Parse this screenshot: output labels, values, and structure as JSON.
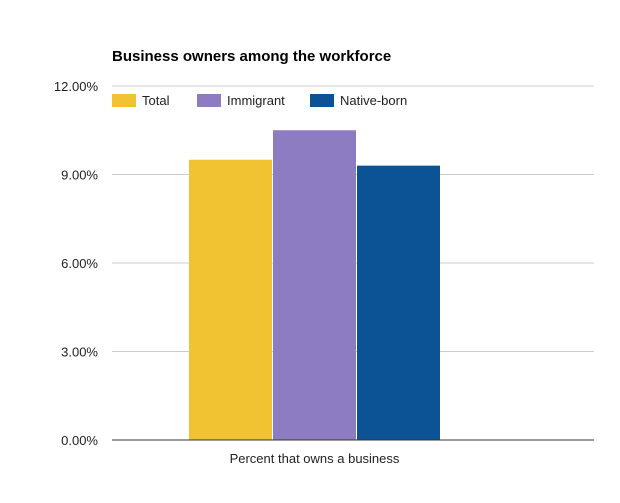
{
  "chart_data": {
    "type": "bar",
    "title": "Business owners among the workforce",
    "categories": [
      "Percent that owns a business"
    ],
    "series": [
      {
        "name": "Total",
        "values": [
          9.5
        ],
        "color": "#f1c232"
      },
      {
        "name": "Immigrant",
        "values": [
          10.5
        ],
        "color": "#8e7cc3"
      },
      {
        "name": "Native-born",
        "values": [
          9.3
        ],
        "color": "#0b5394"
      }
    ],
    "ylim": [
      0,
      12
    ],
    "yticks": [
      "0.00%",
      "3.00%",
      "6.00%",
      "9.00%",
      "12.00%"
    ],
    "ytick_values": [
      0,
      3,
      6,
      9,
      12
    ],
    "grid": true,
    "legend_position": "top-left"
  }
}
